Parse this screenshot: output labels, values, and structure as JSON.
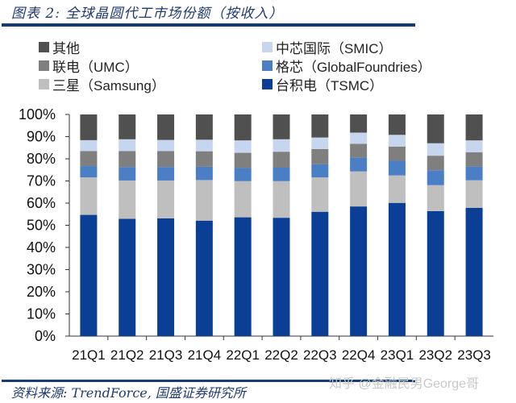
{
  "header": {
    "title": "图表 2:  全球晶圆代工市场份额（按收入）"
  },
  "footer": {
    "source": "资料来源: TrendForce, 国盛证券研究所",
    "watermark": "知乎 @金融民男George哥"
  },
  "legend": [
    {
      "label": "其他",
      "color": "#505050"
    },
    {
      "label": "中芯国际（SMIC）",
      "color": "#c6d6ee"
    },
    {
      "label": "联电（UMC）",
      "color": "#7f7f7f"
    },
    {
      "label": "格芯（GlobalFoundries）",
      "color": "#4a7fc6"
    },
    {
      "label": "三星（Samsung）",
      "color": "#bfbfbf"
    },
    {
      "label": "台积电（TSMC）",
      "color": "#0b3f96"
    }
  ],
  "chart_data": {
    "type": "bar",
    "stacked": true,
    "title": "全球晶圆代工市场份额（按收入）",
    "xlabel": "",
    "ylabel": "",
    "ylim": [
      0,
      100
    ],
    "yticks": [
      "0%",
      "10%",
      "20%",
      "30%",
      "40%",
      "50%",
      "60%",
      "70%",
      "80%",
      "90%",
      "100%"
    ],
    "categories": [
      "21Q1",
      "21Q2",
      "21Q3",
      "21Q4",
      "22Q1",
      "22Q2",
      "22Q3",
      "22Q4",
      "23Q1",
      "23Q2",
      "23Q3"
    ],
    "legend_position": "top",
    "series": [
      {
        "name": "台积电（TSMC）",
        "color": "#0b3f96",
        "values": [
          54.7,
          52.9,
          53.1,
          52.1,
          53.6,
          53.4,
          56.1,
          58.5,
          60.1,
          56.4,
          57.9
        ]
      },
      {
        "name": "三星（Samsung）",
        "color": "#bfbfbf",
        "values": [
          16.9,
          17.3,
          17.1,
          18.3,
          16.3,
          16.5,
          15.5,
          15.8,
          12.4,
          11.7,
          12.4
        ]
      },
      {
        "name": "格芯（GlobalFoundries）",
        "color": "#4a7fc6",
        "values": [
          5.1,
          6.1,
          6.1,
          6.0,
          5.9,
          6.1,
          5.9,
          6.2,
          6.6,
          6.7,
          6.2
        ]
      },
      {
        "name": "联电（UMC）",
        "color": "#7f7f7f",
        "values": [
          6.8,
          7.2,
          7.2,
          7.0,
          6.9,
          7.2,
          6.9,
          6.3,
          6.4,
          6.6,
          6.4
        ]
      },
      {
        "name": "中芯国际（SMIC）",
        "color": "#c6d6ee",
        "values": [
          4.9,
          5.3,
          5.0,
          5.2,
          5.6,
          5.6,
          5.2,
          5.0,
          5.3,
          5.6,
          5.4
        ]
      },
      {
        "name": "其他",
        "color": "#505050",
        "values": [
          11.6,
          11.2,
          11.5,
          11.4,
          11.7,
          11.2,
          10.4,
          8.2,
          9.2,
          13.0,
          11.7
        ]
      }
    ]
  }
}
